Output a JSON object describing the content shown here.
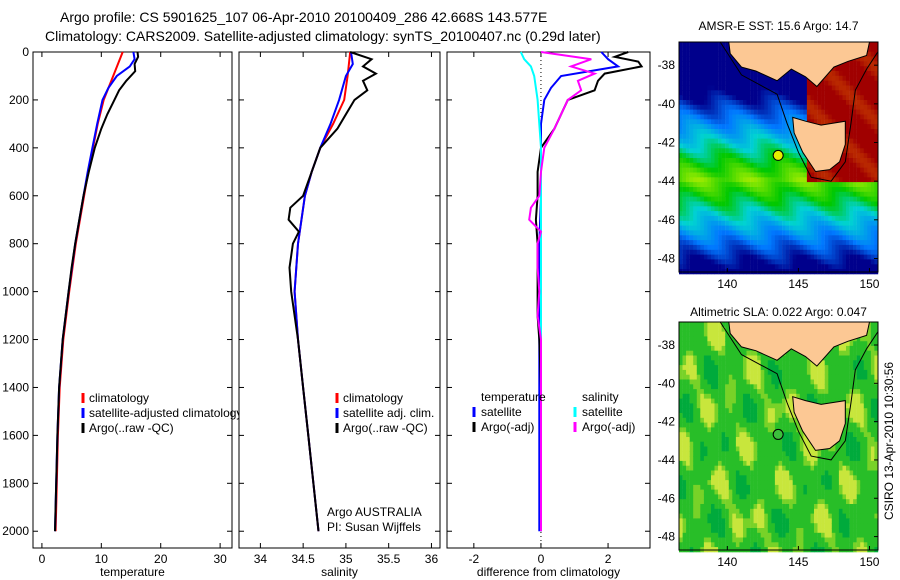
{
  "title_line1": "Argo profile: CS 5901625_107 06-Apr-2010 20100409_286 42.668S 143.577E",
  "title_line2": "Climatology: CARS2009. Satellite-adjusted climatology: synTS_20100407.nc (0.29d later)",
  "side_text": "CSIRO 13-Apr-2010 10:30:56",
  "colors": {
    "climatology": "#ff0000",
    "satellite": "#0000ff",
    "argo": "#000000",
    "sal_satellite": "#00ffff",
    "sal_argo": "#ff00ff"
  },
  "chart_data": [
    {
      "type": "line",
      "xlabel": "temperature",
      "ylabel": "",
      "xlim": [
        -1.5,
        32
      ],
      "ylim": [
        2070,
        0
      ],
      "xticks": [
        0,
        10,
        20,
        30
      ],
      "yticks": [
        0,
        200,
        400,
        600,
        800,
        1000,
        1200,
        1400,
        1600,
        1800,
        2000
      ],
      "legend": [
        "climatology",
        "satellite-adjusted climatology",
        "Argo(..raw -QC)"
      ],
      "series": [
        {
          "name": "climatology",
          "color": "#ff0000",
          "depth": [
            0,
            100,
            200,
            300,
            400,
            500,
            600,
            800,
            1000,
            1200,
            1400,
            1600,
            1800,
            2000
          ],
          "values": [
            13.6,
            12,
            10.4,
            9.4,
            8.6,
            7.8,
            7.1,
            5.7,
            4.6,
            3.6,
            3.0,
            2.7,
            2.5,
            2.3
          ]
        },
        {
          "name": "satellite-adjusted climatology",
          "color": "#0000ff",
          "depth": [
            0,
            30,
            60,
            100,
            150,
            200,
            300,
            400,
            500,
            600,
            800,
            1000,
            1200,
            1400,
            1600,
            1800,
            2000
          ],
          "values": [
            15.4,
            15.6,
            14.8,
            12.6,
            11.2,
            10.2,
            9.3,
            8.5,
            7.7,
            7.0,
            5.6,
            4.5,
            3.5,
            2.9,
            2.6,
            2.4,
            2.2
          ]
        },
        {
          "name": "Argo(..raw -QC)",
          "color": "#000000",
          "depth": [
            0,
            20,
            50,
            80,
            120,
            160,
            200,
            260,
            320,
            400,
            500,
            600,
            700,
            800,
            900,
            1000,
            1200,
            1400,
            1600,
            1800,
            2000
          ],
          "values": [
            16.1,
            16.2,
            15.6,
            15.7,
            14.2,
            13.0,
            12.2,
            11.0,
            10.0,
            8.9,
            7.9,
            7.0,
            6.3,
            5.6,
            5.0,
            4.5,
            3.5,
            2.9,
            2.6,
            2.4,
            2.2
          ]
        }
      ]
    },
    {
      "type": "line",
      "xlabel": "salinity",
      "xlim": [
        33.75,
        36.1
      ],
      "ylim": [
        2070,
        0
      ],
      "xticks": [
        34,
        34.5,
        35,
        35.5,
        36
      ],
      "legend": [
        "climatology",
        "satellite adj. clim.",
        "Argo(..raw -QC)"
      ],
      "annotation": [
        "Argo AUSTRALIA",
        "PI: Susan Wijffels"
      ],
      "series": [
        {
          "name": "climatology",
          "color": "#ff0000",
          "depth": [
            0,
            100,
            200,
            300,
            400,
            500,
            600,
            800,
            1000,
            1200,
            1400,
            1600,
            1800,
            2000
          ],
          "values": [
            35.05,
            35.02,
            34.98,
            34.85,
            34.7,
            34.6,
            34.52,
            34.44,
            34.4,
            34.44,
            34.5,
            34.56,
            34.62,
            34.68
          ]
        },
        {
          "name": "satellite adj. clim.",
          "color": "#0000ff",
          "depth": [
            0,
            50,
            100,
            200,
            300,
            400,
            500,
            600,
            800,
            1000,
            1200,
            1400,
            1600,
            1800,
            2000
          ],
          "values": [
            35.06,
            35.08,
            35.0,
            34.92,
            34.82,
            34.7,
            34.6,
            34.52,
            34.44,
            34.4,
            34.44,
            34.5,
            34.56,
            34.62,
            34.68
          ]
        },
        {
          "name": "Argo(..raw -QC)",
          "color": "#000000",
          "depth": [
            0,
            30,
            60,
            90,
            120,
            160,
            200,
            260,
            320,
            400,
            500,
            600,
            650,
            700,
            750,
            800,
            900,
            1000,
            1100,
            1200,
            1400,
            1600,
            1800,
            2000
          ],
          "values": [
            35.05,
            35.3,
            35.2,
            35.35,
            35.2,
            35.25,
            35.1,
            35.0,
            34.9,
            34.7,
            34.6,
            34.5,
            34.35,
            34.33,
            34.45,
            34.38,
            34.34,
            34.36,
            34.4,
            34.44,
            34.5,
            34.56,
            34.62,
            34.68
          ]
        }
      ]
    },
    {
      "type": "line",
      "xlabel": "difference from climatology",
      "xlim": [
        -2.8,
        3.25
      ],
      "ylim": [
        2070,
        0
      ],
      "xticks": [
        -2,
        0,
        2
      ],
      "legend": {
        "temperature": [
          "satellite",
          "Argo(-adj)"
        ],
        "salinity": [
          "satellite",
          "Argo(-adj)"
        ],
        "temperature_label": "temperature",
        "salinity_label": "salinity"
      },
      "series": [
        {
          "name": "temperature satellite",
          "color": "#0000ff",
          "depth": [
            0,
            30,
            60,
            100,
            150,
            200,
            300,
            400,
            600,
            800,
            1000,
            1200,
            1400,
            1600,
            1800,
            2000
          ],
          "values": [
            1.8,
            2.0,
            2.3,
            0.6,
            0.3,
            0.1,
            0.0,
            0.0,
            0.0,
            -0.05,
            -0.05,
            -0.05,
            -0.05,
            -0.05,
            -0.05,
            -0.05
          ]
        },
        {
          "name": "temperature Argo(-adj)",
          "color": "#000000",
          "depth": [
            0,
            20,
            40,
            60,
            90,
            120,
            160,
            200,
            260,
            320,
            400,
            500,
            600,
            700,
            800,
            900,
            1000,
            1100,
            1200,
            1400,
            1600,
            1800,
            2000
          ],
          "values": [
            2.6,
            2.2,
            2.9,
            3.0,
            1.9,
            1.7,
            1.6,
            0.8,
            0.6,
            0.4,
            0.0,
            -0.1,
            -0.1,
            -0.15,
            -0.1,
            -0.1,
            -0.1,
            -0.1,
            -0.05,
            0.0,
            0.0,
            0.0,
            0.0
          ]
        },
        {
          "name": "salinity satellite",
          "color": "#00ffff",
          "depth": [
            0,
            30,
            60,
            100,
            200,
            300,
            400,
            600,
            800,
            1000,
            1200,
            1400,
            1600,
            1800,
            2000
          ],
          "values": [
            -0.6,
            -0.5,
            -0.3,
            -0.2,
            -0.1,
            -0.05,
            0.0,
            0.0,
            0.0,
            0.0,
            0.0,
            0.0,
            0.0,
            0.0,
            0.0
          ]
        },
        {
          "name": "salinity Argo(-adj)",
          "color": "#ff00ff",
          "depth": [
            0,
            30,
            60,
            90,
            120,
            160,
            200,
            260,
            320,
            400,
            500,
            600,
            650,
            700,
            750,
            800,
            900,
            1000,
            1100,
            1200,
            1400,
            1600,
            1800,
            2000
          ],
          "values": [
            0.0,
            1.5,
            0.9,
            1.6,
            1.1,
            1.2,
            0.8,
            0.6,
            0.4,
            0.1,
            0.0,
            -0.05,
            -0.3,
            -0.35,
            0.0,
            -0.1,
            -0.1,
            -0.05,
            -0.1,
            0.0,
            0.0,
            0.0,
            0.0,
            0.0
          ]
        }
      ]
    }
  ],
  "maps": [
    {
      "title": "AMSR-E SST: 15.6 Argo: 14.7",
      "xticks": [
        140,
        145,
        150
      ],
      "yticks": [
        -38,
        -40,
        -42,
        -44,
        -46,
        -48
      ],
      "marker": {
        "lon": 143.577,
        "lat": -42.668
      }
    },
    {
      "title": "Altimetric SLA: 0.022 Argo: 0.047",
      "xticks": [
        140,
        145,
        150
      ],
      "yticks": [
        -38,
        -40,
        -42,
        -44,
        -46,
        -48
      ],
      "marker": {
        "lon": 143.577,
        "lat": -42.668
      }
    }
  ]
}
